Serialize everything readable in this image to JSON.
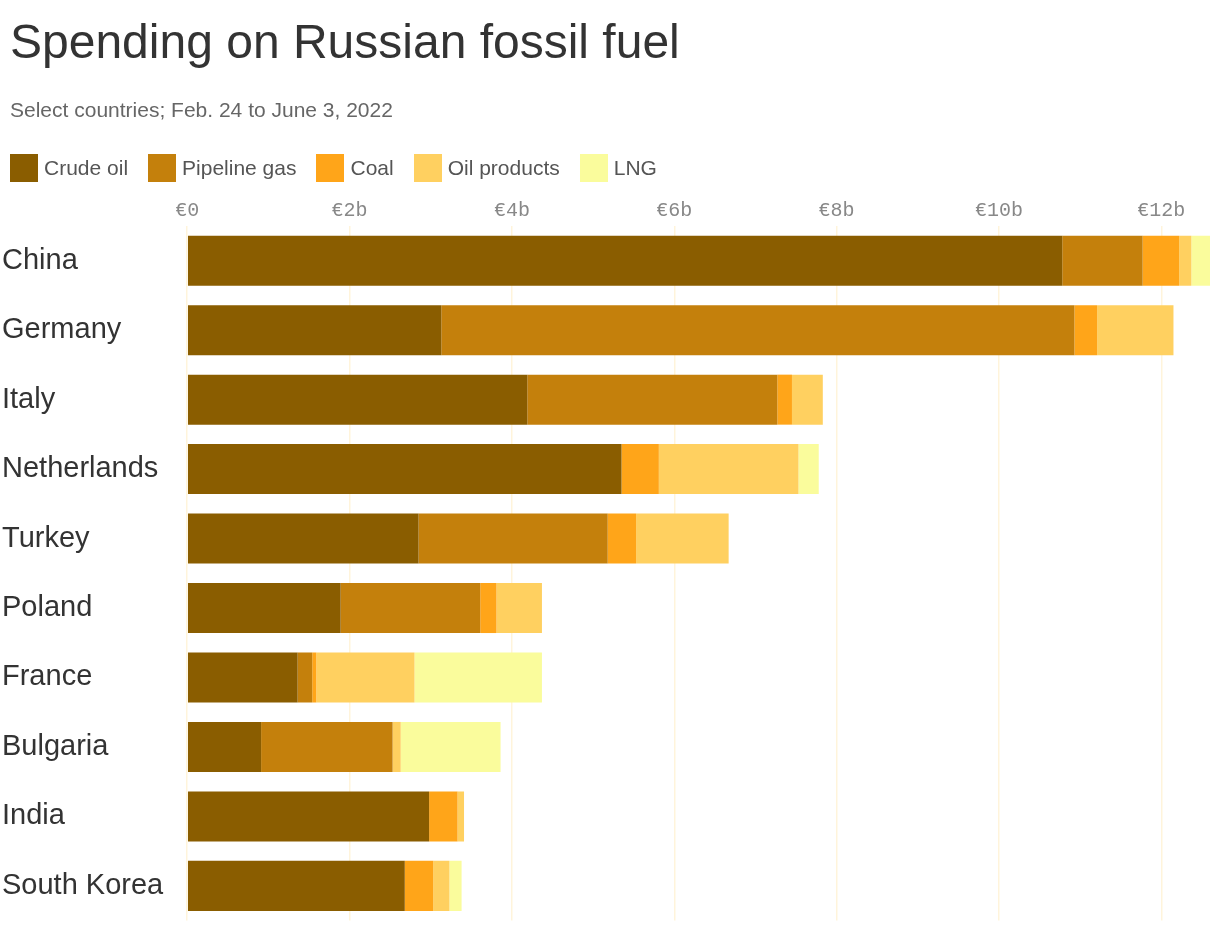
{
  "chart_data": {
    "type": "bar",
    "orientation": "horizontal",
    "stacked": true,
    "title": "Spending on Russian fossil fuel",
    "subtitle": "Select countries; Feb. 24 to June 3, 2022",
    "categories": [
      "China",
      "Germany",
      "Italy",
      "Netherlands",
      "Turkey",
      "Poland",
      "France",
      "Bulgaria",
      "India",
      "South Korea"
    ],
    "series": [
      {
        "name": "Crude oil",
        "color": "#8a5d00",
        "values": [
          10.78,
          3.13,
          4.19,
          5.35,
          2.85,
          1.89,
          1.36,
          0.91,
          2.98,
          2.68
        ]
      },
      {
        "name": "Pipeline gas",
        "color": "#c4800c",
        "values": [
          0.99,
          7.8,
          3.08,
          0,
          2.33,
          1.72,
          0.18,
          1.62,
          0,
          0
        ]
      },
      {
        "name": "Coal",
        "color": "#ffa519",
        "values": [
          0.45,
          0.28,
          0.18,
          0.46,
          0.35,
          0.2,
          0.05,
          0,
          0.35,
          0.35
        ]
      },
      {
        "name": "Oil products",
        "color": "#ffd060",
        "values": [
          0.15,
          0.94,
          0.38,
          1.72,
          1.14,
          0.56,
          1.21,
          0.1,
          0.08,
          0.2
        ]
      },
      {
        "name": "LNG",
        "color": "#fafc9c",
        "values": [
          0.23,
          0,
          0,
          0.25,
          0,
          0,
          1.57,
          1.23,
          0,
          0.15
        ]
      }
    ],
    "xlim": [
      0,
      12.6
    ],
    "xticks": [
      {
        "value": 0,
        "label": "€0"
      },
      {
        "value": 2,
        "label": "€2b"
      },
      {
        "value": 4,
        "label": "€4b"
      },
      {
        "value": 6,
        "label": "€6b"
      },
      {
        "value": 8,
        "label": "€8b"
      },
      {
        "value": 10,
        "label": "€10b"
      },
      {
        "value": 12,
        "label": "€12b"
      }
    ],
    "grid": "x",
    "legend": "top left"
  }
}
